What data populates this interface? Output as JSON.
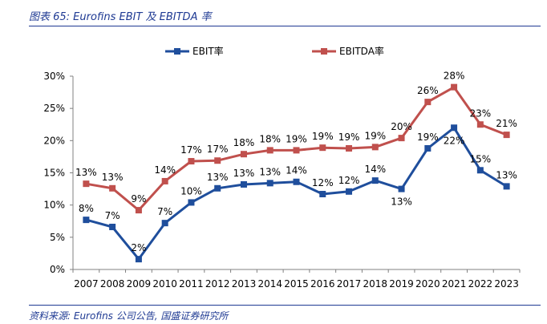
{
  "figure": {
    "title": "图表 65:  Eurofins EBIT 及 EBITDA 率",
    "source": "资料来源:  Eurofins 公司公告, 国盛证券研究所"
  },
  "colors": {
    "ebit": "#1f4e9c",
    "ebitda": "#c0504d",
    "axis": "#808080",
    "title": "#1f3a93"
  },
  "chart_data": {
    "type": "line",
    "title": "",
    "xlabel": "",
    "ylabel": "",
    "categories": [
      "2007",
      "2008",
      "2009",
      "2010",
      "2011",
      "2012",
      "2013",
      "2014",
      "2015",
      "2016",
      "2017",
      "2018",
      "2019",
      "2020",
      "2021",
      "2022",
      "2023"
    ],
    "ylim": [
      0,
      30
    ],
    "yticks": [
      "0%",
      "5%",
      "10%",
      "15%",
      "20%",
      "25%",
      "30%"
    ],
    "grid": false,
    "legend": "top-center",
    "series": [
      {
        "name": "EBIT率",
        "color": "#1f4e9c",
        "marker": "square",
        "values": [
          7.7,
          6.6,
          1.6,
          7.2,
          10.4,
          12.6,
          13.2,
          13.4,
          13.6,
          11.7,
          12.1,
          13.8,
          12.5,
          18.8,
          22.0,
          15.4,
          12.9
        ],
        "labels": [
          "8%",
          "7%",
          "2%",
          "7%",
          "10%",
          "13%",
          "13%",
          "13%",
          "14%",
          "12%",
          "12%",
          "14%",
          "13%",
          "19%",
          "22%",
          "15%",
          "13%"
        ]
      },
      {
        "name": "EBITDA率",
        "color": "#c0504d",
        "marker": "square",
        "values": [
          13.3,
          12.6,
          9.2,
          13.7,
          16.8,
          16.9,
          17.9,
          18.5,
          18.5,
          18.9,
          18.8,
          19.0,
          20.4,
          26.0,
          28.3,
          22.5,
          20.9
        ],
        "labels": [
          "13%",
          "13%",
          "9%",
          "14%",
          "17%",
          "17%",
          "18%",
          "18%",
          "19%",
          "19%",
          "19%",
          "19%",
          "20%",
          "26%",
          "28%",
          "23%",
          "21%"
        ]
      }
    ]
  }
}
